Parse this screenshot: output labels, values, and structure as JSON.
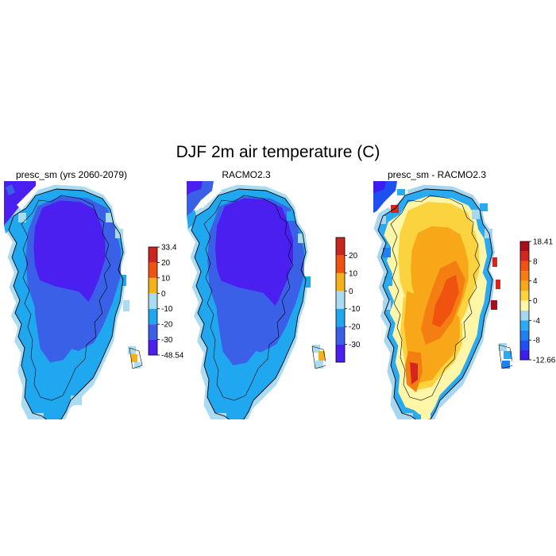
{
  "title": "DJF 2m air temperature (C)",
  "panels": [
    {
      "id": "presc",
      "title": "presc_sm (yrs 2060-2079)",
      "colorbar": {
        "colors": [
          "#4a1ff0",
          "#3a60e8",
          "#1fa8f0",
          "#a9dcf2",
          "#f5b11a",
          "#f0520f",
          "#c8261e"
        ],
        "labels": [
          "-48.54",
          "-30",
          "-20",
          "-10",
          "0",
          "10",
          "20",
          "33.4"
        ],
        "label_at_all_boundaries": true
      }
    },
    {
      "id": "racmo",
      "title": "RACMO2.3",
      "colorbar": {
        "colors": [
          "#4a1ff0",
          "#3a60e8",
          "#1fa8f0",
          "#a9dcf2",
          "#f5b11a",
          "#f0520f",
          "#c8261e"
        ],
        "labels": [
          "-30",
          "-20",
          "-10",
          "0",
          "10",
          "20"
        ],
        "label_at_all_boundaries": false
      }
    },
    {
      "id": "diff",
      "title": "presc_sm - RACMO2.3",
      "colorbar": {
        "colors": [
          "#3c1ff0",
          "#1e4ff0",
          "#1f80f0",
          "#2aaaf0",
          "#a6d6f0",
          "#fff6a8",
          "#fbd33f",
          "#f8a718",
          "#f57e12",
          "#f0520f",
          "#d4261c",
          "#a80f18"
        ],
        "labels": [
          "-12.66",
          "-8",
          "-4",
          "0",
          "4",
          "8",
          "18.41"
        ],
        "label_at_all_boundaries": false
      }
    }
  ]
}
